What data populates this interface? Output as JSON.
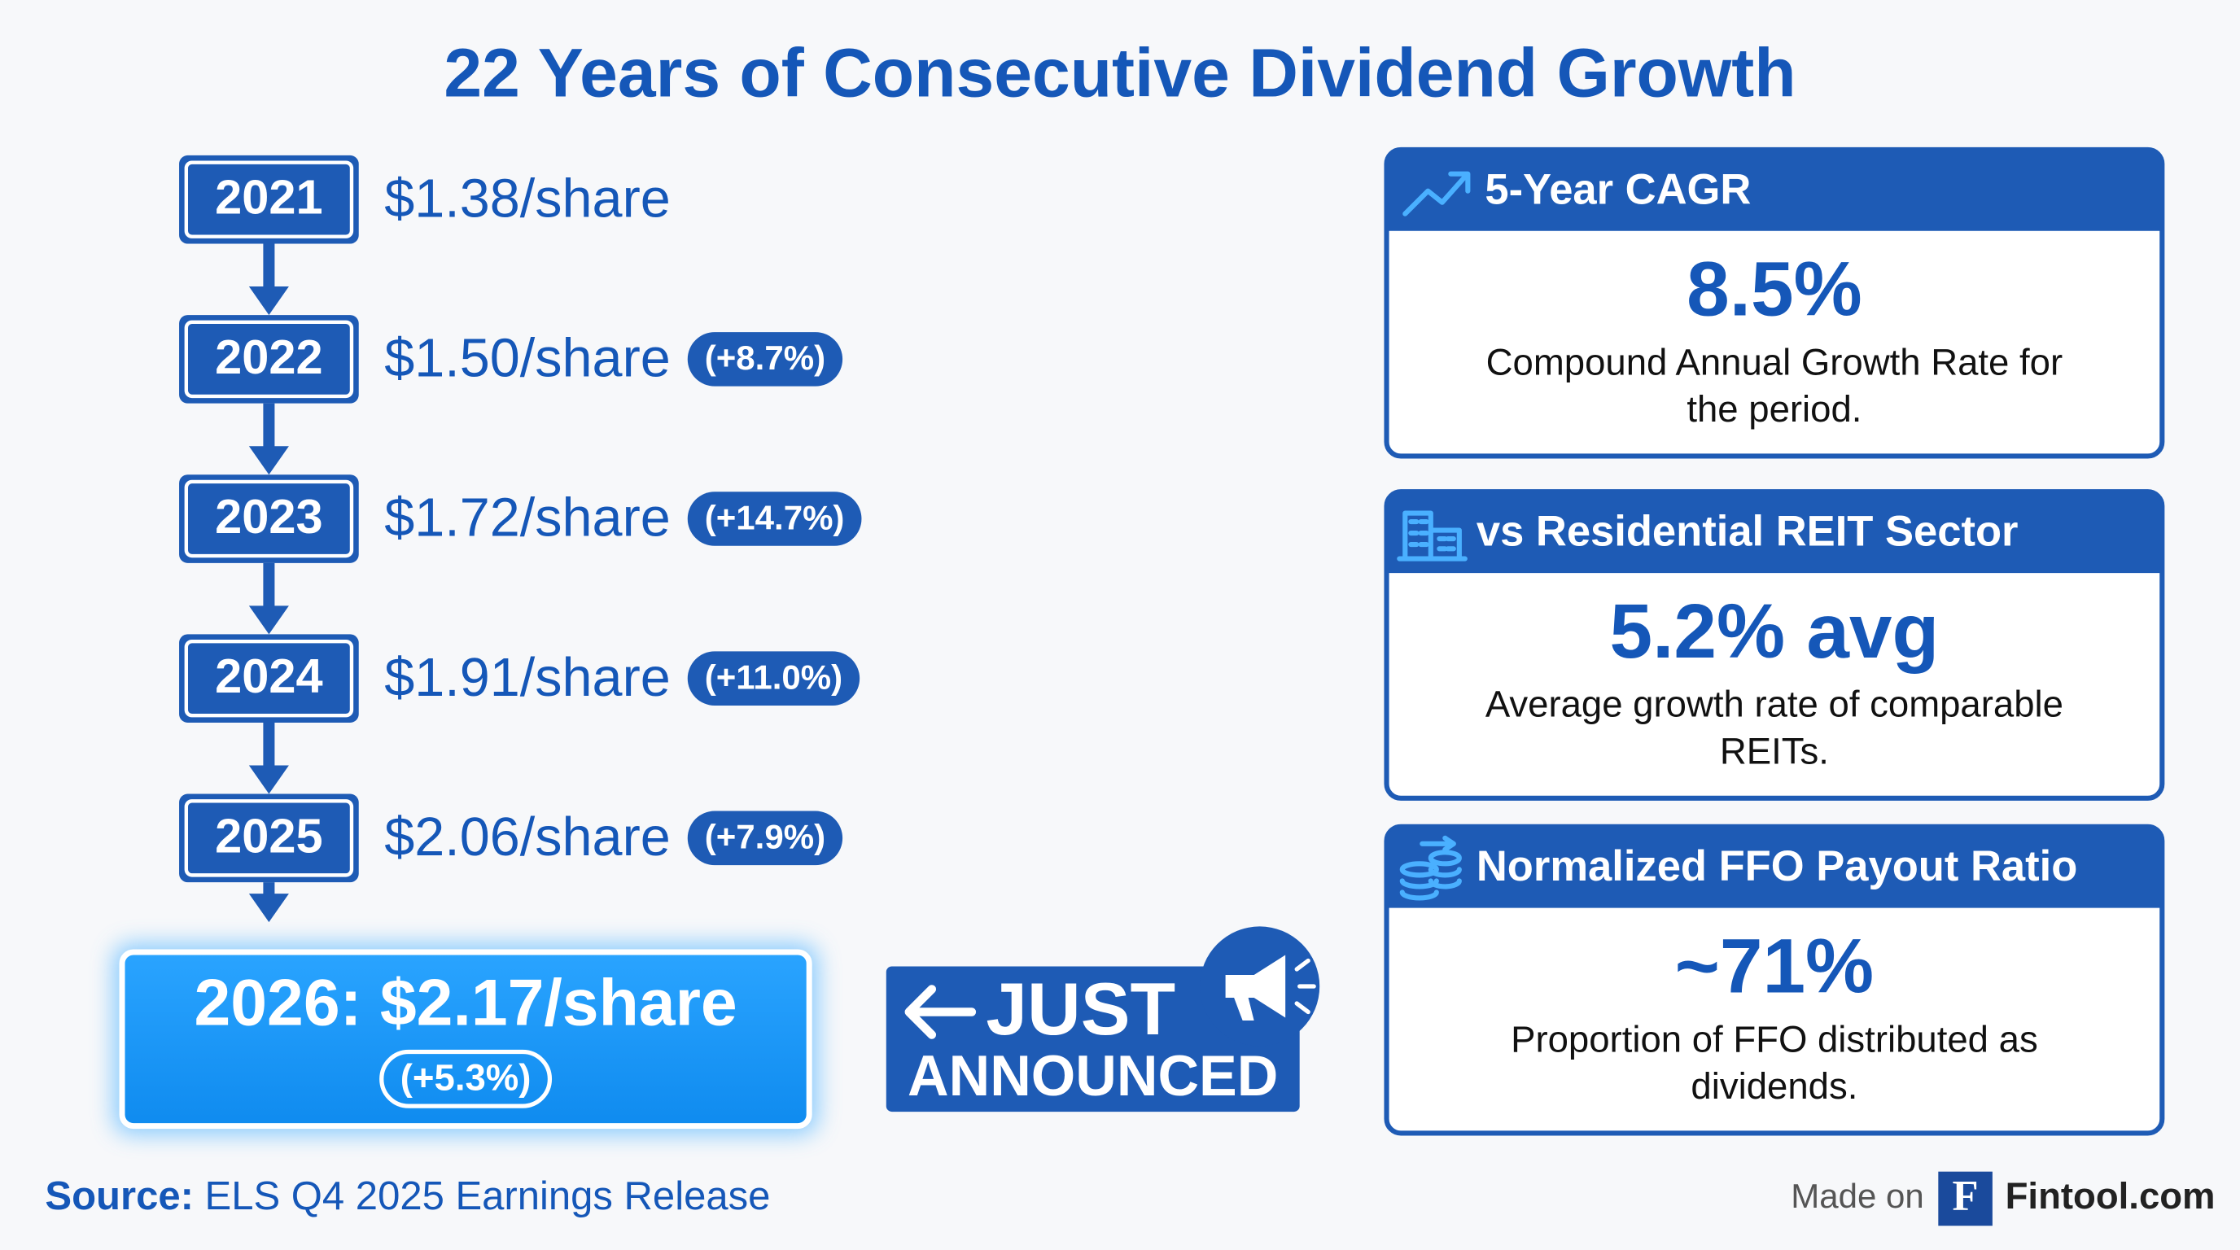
{
  "title": "22 Years of Consecutive Dividend Growth",
  "timeline": [
    {
      "year": "2021",
      "amount": "$1.38/share",
      "change": null
    },
    {
      "year": "2022",
      "amount": "$1.50/share",
      "change": "(+8.7%)"
    },
    {
      "year": "2023",
      "amount": "$1.72/share",
      "change": "(+14.7%)"
    },
    {
      "year": "2024",
      "amount": "$1.91/share",
      "change": "(+11.0%)"
    },
    {
      "year": "2025",
      "amount": "$2.06/share",
      "change": "(+7.9%)"
    }
  ],
  "highlight": {
    "label": "2026: $2.17/share",
    "change": "(+5.3%)"
  },
  "callout": {
    "line1": "JUST",
    "line2": "ANNOUNCED"
  },
  "cards": [
    {
      "title": "5-Year CAGR",
      "value": "8.5%",
      "description_lines": [
        "Compound Annual Growth Rate for",
        "the period."
      ]
    },
    {
      "title": "vs Residential REIT Sector",
      "value": "5.2% avg",
      "description_lines": [
        "Average growth rate of comparable",
        "REITs."
      ]
    },
    {
      "title": "Normalized FFO Payout Ratio",
      "value": "~71%",
      "description_lines": [
        "Proportion of FFO distributed as",
        "dividends."
      ]
    }
  ],
  "footer": {
    "source_label": "Source:",
    "source": "ELS Q4 2025 Earnings Release",
    "made_on": "Made on",
    "logo_letter": "F",
    "brand": "Fintool.com"
  }
}
